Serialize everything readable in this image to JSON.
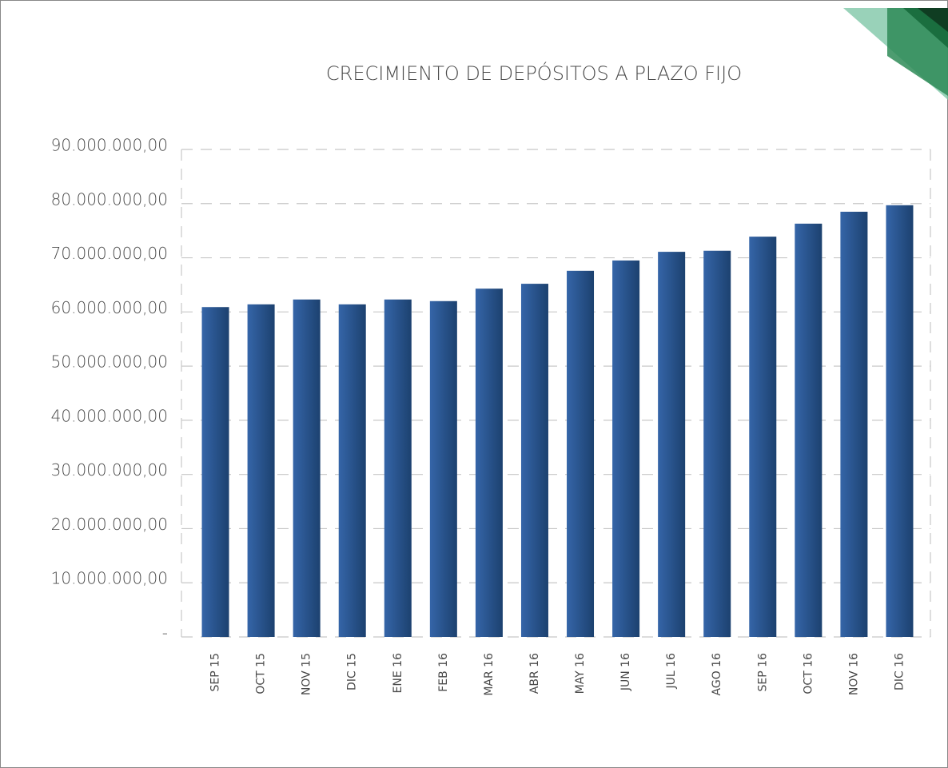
{
  "chart_data": {
    "type": "bar",
    "title": "CRECIMIENTO DE DEPÓSITOS A PLAZO FIJO",
    "categories": [
      "SEP 15",
      "OCT 15",
      "NOV 15",
      "DIC 15",
      "ENE 16",
      "FEB 16",
      "MAR 16",
      "ABR 16",
      "MAY 16",
      "JUN 16",
      "JUL 16",
      "AGO 16",
      "SEP 16",
      "OCT 16",
      "NOV 16",
      "DIC 16"
    ],
    "values": [
      60900000,
      61400000,
      62300000,
      61400000,
      62300000,
      62000000,
      64300000,
      65200000,
      67600000,
      69500000,
      71100000,
      71300000,
      73900000,
      76300000,
      78500000,
      79700000
    ],
    "color": "#3565a8",
    "ylim": [
      0,
      90000000
    ],
    "yticks": [
      {
        "value": 0,
        "label": "-"
      },
      {
        "value": 10000000,
        "label": "10.000.000,00"
      },
      {
        "value": 20000000,
        "label": "20.000.000,00"
      },
      {
        "value": 30000000,
        "label": "30.000.000,00"
      },
      {
        "value": 40000000,
        "label": "40.000.000,00"
      },
      {
        "value": 50000000,
        "label": "50.000.000,00"
      },
      {
        "value": 60000000,
        "label": "60.000.000,00"
      },
      {
        "value": 70000000,
        "label": "70.000.000,00"
      },
      {
        "value": 80000000,
        "label": "80.000.000,00"
      },
      {
        "value": 90000000,
        "label": "90.000.000,00"
      }
    ],
    "grid": true
  }
}
